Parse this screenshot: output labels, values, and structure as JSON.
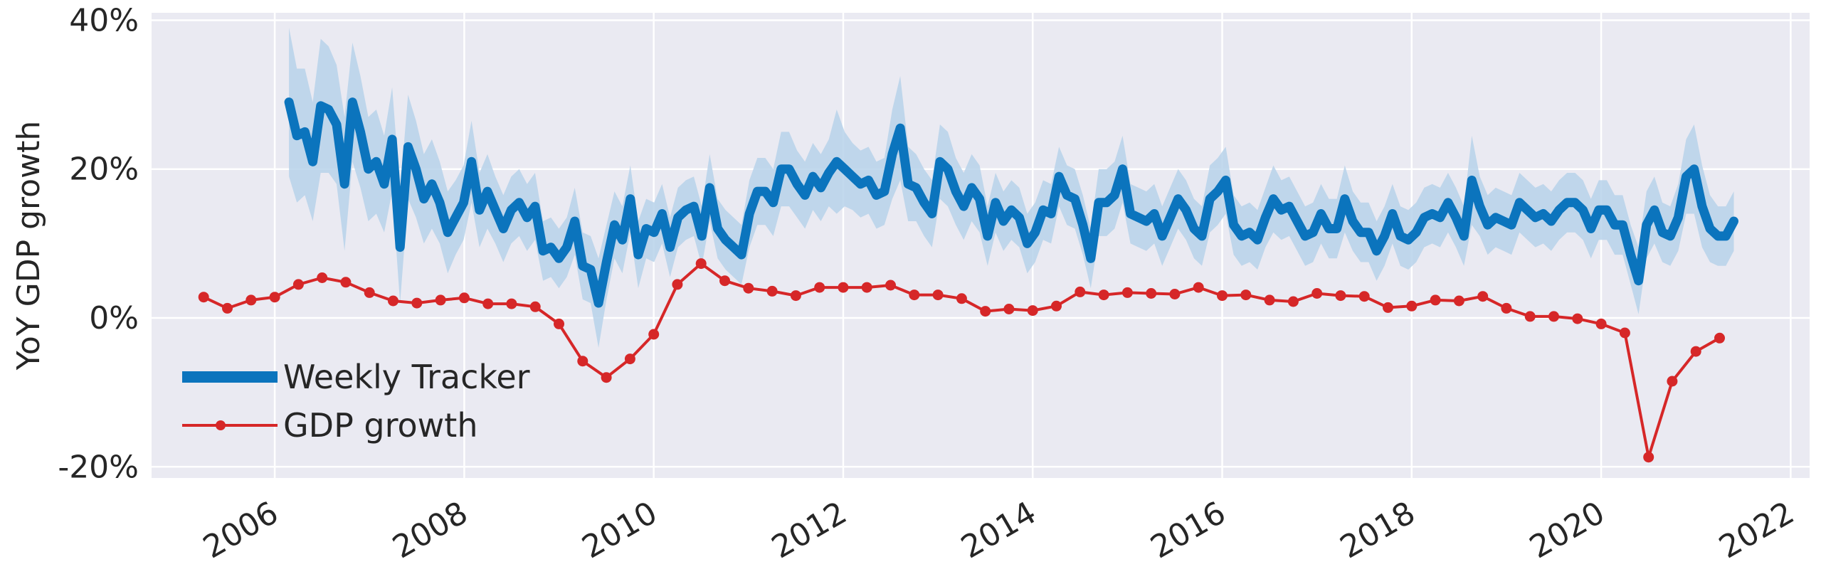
{
  "chart_data": {
    "type": "line",
    "title": "",
    "xlabel": "",
    "ylabel": "YoY GDP growth",
    "xlim": [
      2004.7,
      2022.2
    ],
    "ylim": [
      -0.215,
      0.41
    ],
    "x_ticks": [
      2006,
      2008,
      2010,
      2012,
      2014,
      2016,
      2018,
      2020,
      2022
    ],
    "x_tick_labels": [
      "2006",
      "2008",
      "2010",
      "2012",
      "2014",
      "2016",
      "2018",
      "2020",
      "2022"
    ],
    "y_ticks": [
      -0.2,
      0,
      0.2,
      0.4
    ],
    "y_tick_labels": [
      "-20%",
      "0%",
      "20%",
      "40%"
    ],
    "grid": true,
    "legend_position": "lower-left",
    "colors": {
      "background": "#eaeaf2",
      "grid": "#ffffff",
      "tracker": "#0b74bd",
      "band": "#b7d2ea",
      "gdp": "#d62728"
    },
    "series": [
      {
        "name": "Weekly Tracker",
        "style": "thick-line-with-band",
        "x_start": 2006.15,
        "x_end": 2021.4,
        "values": [
          0.29,
          0.245,
          0.25,
          0.21,
          0.285,
          0.28,
          0.26,
          0.18,
          0.29,
          0.25,
          0.2,
          0.21,
          0.18,
          0.24,
          0.095,
          0.23,
          0.2,
          0.16,
          0.18,
          0.155,
          0.115,
          0.135,
          0.155,
          0.21,
          0.145,
          0.17,
          0.145,
          0.12,
          0.145,
          0.155,
          0.135,
          0.15,
          0.09,
          0.095,
          0.08,
          0.095,
          0.13,
          0.07,
          0.065,
          0.02,
          0.075,
          0.125,
          0.105,
          0.16,
          0.085,
          0.12,
          0.115,
          0.14,
          0.095,
          0.135,
          0.145,
          0.15,
          0.11,
          0.175,
          0.12,
          0.105,
          0.095,
          0.085,
          0.14,
          0.17,
          0.17,
          0.155,
          0.2,
          0.2,
          0.18,
          0.165,
          0.19,
          0.175,
          0.195,
          0.21,
          0.2,
          0.19,
          0.18,
          0.185,
          0.165,
          0.17,
          0.22,
          0.255,
          0.18,
          0.175,
          0.155,
          0.14,
          0.21,
          0.2,
          0.17,
          0.15,
          0.175,
          0.16,
          0.11,
          0.155,
          0.13,
          0.145,
          0.135,
          0.1,
          0.115,
          0.145,
          0.14,
          0.19,
          0.165,
          0.16,
          0.125,
          0.08,
          0.155,
          0.155,
          0.165,
          0.2,
          0.14,
          0.135,
          0.13,
          0.14,
          0.11,
          0.135,
          0.16,
          0.145,
          0.12,
          0.11,
          0.16,
          0.17,
          0.185,
          0.125,
          0.11,
          0.115,
          0.105,
          0.135,
          0.16,
          0.145,
          0.15,
          0.13,
          0.11,
          0.115,
          0.14,
          0.12,
          0.12,
          0.16,
          0.13,
          0.115,
          0.115,
          0.09,
          0.11,
          0.14,
          0.11,
          0.105,
          0.115,
          0.135,
          0.14,
          0.135,
          0.155,
          0.135,
          0.11,
          0.185,
          0.15,
          0.125,
          0.135,
          0.13,
          0.125,
          0.155,
          0.145,
          0.135,
          0.14,
          0.13,
          0.145,
          0.155,
          0.155,
          0.145,
          0.12,
          0.145,
          0.145,
          0.125,
          0.125,
          0.085,
          0.05,
          0.125,
          0.145,
          0.115,
          0.11,
          0.135,
          0.19,
          0.2,
          0.15,
          0.12,
          0.11,
          0.11,
          0.13
        ],
        "band_halfwidth": [
          0.1,
          0.09,
          0.085,
          0.08,
          0.09,
          0.085,
          0.08,
          0.09,
          0.08,
          0.075,
          0.07,
          0.07,
          0.065,
          0.07,
          0.075,
          0.07,
          0.065,
          0.06,
          0.06,
          0.055,
          0.055,
          0.05,
          0.05,
          0.055,
          0.05,
          0.05,
          0.045,
          0.045,
          0.045,
          0.045,
          0.045,
          0.045,
          0.04,
          0.04,
          0.04,
          0.04,
          0.045,
          0.045,
          0.045,
          0.06,
          0.05,
          0.045,
          0.045,
          0.045,
          0.045,
          0.04,
          0.04,
          0.04,
          0.04,
          0.04,
          0.04,
          0.04,
          0.04,
          0.045,
          0.04,
          0.04,
          0.04,
          0.04,
          0.045,
          0.045,
          0.045,
          0.045,
          0.05,
          0.05,
          0.045,
          0.045,
          0.045,
          0.045,
          0.045,
          0.07,
          0.05,
          0.045,
          0.045,
          0.045,
          0.045,
          0.045,
          0.06,
          0.07,
          0.05,
          0.045,
          0.045,
          0.045,
          0.05,
          0.05,
          0.045,
          0.045,
          0.045,
          0.045,
          0.04,
          0.04,
          0.04,
          0.04,
          0.04,
          0.04,
          0.04,
          0.04,
          0.04,
          0.04,
          0.04,
          0.04,
          0.04,
          0.04,
          0.045,
          0.045,
          0.045,
          0.045,
          0.04,
          0.04,
          0.04,
          0.04,
          0.04,
          0.04,
          0.04,
          0.04,
          0.04,
          0.04,
          0.045,
          0.045,
          0.045,
          0.04,
          0.04,
          0.04,
          0.04,
          0.04,
          0.045,
          0.04,
          0.04,
          0.04,
          0.04,
          0.04,
          0.04,
          0.04,
          0.04,
          0.045,
          0.04,
          0.04,
          0.04,
          0.04,
          0.04,
          0.04,
          0.04,
          0.04,
          0.04,
          0.04,
          0.04,
          0.04,
          0.04,
          0.04,
          0.04,
          0.06,
          0.04,
          0.04,
          0.04,
          0.04,
          0.04,
          0.04,
          0.04,
          0.04,
          0.04,
          0.04,
          0.04,
          0.04,
          0.04,
          0.04,
          0.04,
          0.04,
          0.04,
          0.04,
          0.04,
          0.04,
          0.045,
          0.045,
          0.045,
          0.04,
          0.04,
          0.045,
          0.05,
          0.06,
          0.055,
          0.045,
          0.04,
          0.04,
          0.04
        ]
      },
      {
        "name": "GDP growth",
        "style": "line-with-markers",
        "x": [
          2005.25,
          2005.5,
          2005.75,
          2006.0,
          2006.25,
          2006.5,
          2006.75,
          2007.0,
          2007.25,
          2007.5,
          2007.75,
          2008.0,
          2008.25,
          2008.5,
          2008.75,
          2009.0,
          2009.25,
          2009.5,
          2009.75,
          2010.0,
          2010.25,
          2010.5,
          2010.75,
          2011.0,
          2011.25,
          2011.5,
          2011.75,
          2012.0,
          2012.25,
          2012.5,
          2012.75,
          2013.0,
          2013.25,
          2013.5,
          2013.75,
          2014.0,
          2014.25,
          2014.5,
          2014.75,
          2015.0,
          2015.25,
          2015.5,
          2015.75,
          2016.0,
          2016.25,
          2016.5,
          2016.75,
          2017.0,
          2017.25,
          2017.5,
          2017.75,
          2018.0,
          2018.25,
          2018.5,
          2018.75,
          2019.0,
          2019.25,
          2019.5,
          2019.75,
          2020.0,
          2020.25,
          2020.5,
          2020.75,
          2021.0,
          2021.25
        ],
        "values": [
          0.028,
          0.013,
          0.024,
          0.028,
          0.045,
          0.054,
          0.048,
          0.034,
          0.023,
          0.02,
          0.024,
          0.027,
          0.019,
          0.019,
          0.015,
          -0.008,
          -0.058,
          -0.08,
          -0.055,
          -0.022,
          0.045,
          0.073,
          0.05,
          0.04,
          0.036,
          0.03,
          0.041,
          0.041,
          0.041,
          0.044,
          0.031,
          0.031,
          0.026,
          0.009,
          0.012,
          0.01,
          0.016,
          0.035,
          0.031,
          0.034,
          0.033,
          0.032,
          0.041,
          0.03,
          0.031,
          0.024,
          0.022,
          0.033,
          0.03,
          0.029,
          0.014,
          0.016,
          0.024,
          0.023,
          0.029,
          0.013,
          0.002,
          0.002,
          -0.001,
          -0.008,
          -0.02,
          -0.187,
          -0.085,
          -0.045,
          -0.027
        ]
      }
    ]
  }
}
